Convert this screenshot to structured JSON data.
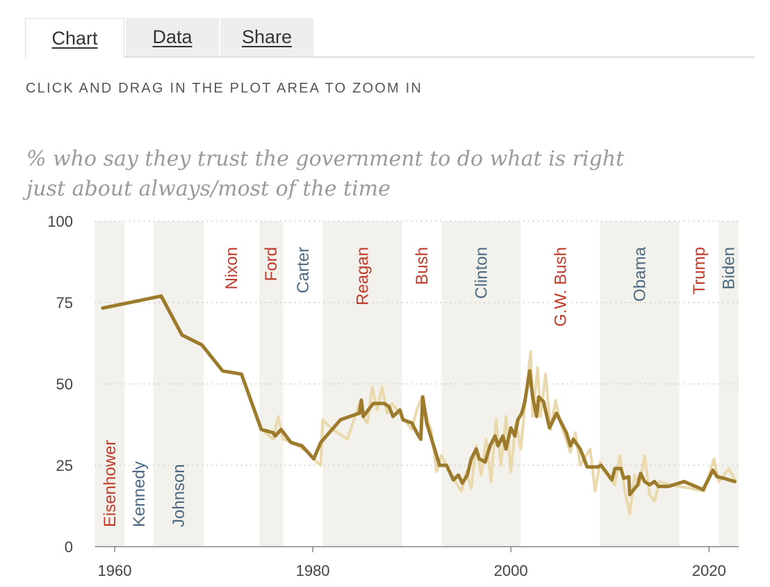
{
  "tabs": [
    "Chart",
    "Data",
    "Share"
  ],
  "instruction": "CLICK AND DRAG IN THE PLOT AREA TO ZOOM IN",
  "chart_data": {
    "type": "line",
    "title": "% who say they trust the government to do what is right just about always/most of the time",
    "xlim": [
      1958,
      2023
    ],
    "xticks": [
      1960,
      1980,
      2000,
      2020
    ],
    "ylim": [
      0,
      100
    ],
    "yticks": [
      0,
      25,
      50,
      75,
      100
    ],
    "grid": true,
    "band_color": "#f3f1ec",
    "presidents": [
      {
        "name": "Eisenhower",
        "start": 1958,
        "end": 1961,
        "color": "#bf3b2c"
      },
      {
        "name": "Kennedy",
        "start": 1961,
        "end": 1963.9,
        "color": "#4e6a82"
      },
      {
        "name": "Johnson",
        "start": 1963.9,
        "end": 1969,
        "color": "#4e6a82"
      },
      {
        "name": "Nixon",
        "start": 1969,
        "end": 1974.6,
        "color": "#bf3b2c"
      },
      {
        "name": "Ford",
        "start": 1974.6,
        "end": 1977,
        "color": "#bf3b2c"
      },
      {
        "name": "Carter",
        "start": 1977,
        "end": 1981,
        "color": "#4e6a82"
      },
      {
        "name": "Reagan",
        "start": 1981,
        "end": 1989,
        "color": "#bf3b2c"
      },
      {
        "name": "Bush",
        "start": 1989,
        "end": 1993,
        "color": "#bf3b2c"
      },
      {
        "name": "Clinton",
        "start": 1993,
        "end": 2001,
        "color": "#4e6a82"
      },
      {
        "name": "G.W. Bush",
        "start": 2001,
        "end": 2009,
        "color": "#bf3b2c"
      },
      {
        "name": "Obama",
        "start": 2009,
        "end": 2017,
        "color": "#4e6a82"
      },
      {
        "name": "Trump",
        "start": 2017,
        "end": 2021,
        "color": "#bf3b2c"
      },
      {
        "name": "Biden",
        "start": 2021,
        "end": 2023,
        "color": "#4e6a82"
      }
    ],
    "series": [
      {
        "color": "#ead9ad",
        "width": 4,
        "x": [
          1972.8,
          1974.8,
          1976,
          1976.5,
          1977,
          1978,
          1979.5,
          1980.4,
          1980.8,
          1981,
          1982,
          1983.5,
          1984.7,
          1985,
          1985.5,
          1986,
          1986.5,
          1987,
          1987.5,
          1988,
          1989,
          1990,
          1990.5,
          1991,
          1991.5,
          1992,
          1992.5,
          1993,
          1994,
          1995,
          1995.5,
          1996,
          1996.5,
          1997,
          1997.5,
          1998,
          1998.5,
          1999,
          1999.5,
          2000,
          2000.5,
          2001,
          2001.5,
          2002,
          2002.2,
          2002.7,
          2003,
          2003.5,
          2004,
          2004.5,
          2005,
          2006,
          2006.5,
          2007,
          2008,
          2008.5,
          2009,
          2010,
          2010.5,
          2011,
          2011.5,
          2012,
          2012.5,
          2013,
          2013.5,
          2014,
          2014.5,
          2015,
          2016,
          2018,
          2019.5,
          2020.5,
          2021,
          2022,
          2022.7
        ],
        "values": [
          53,
          36,
          33,
          40,
          33,
          32,
          29,
          26,
          25,
          39,
          36,
          33,
          44,
          40,
          38,
          49,
          42,
          49,
          41,
          44,
          40,
          36,
          42,
          46,
          40,
          35,
          23,
          28,
          22,
          17,
          23,
          18,
          31,
          22,
          33,
          20,
          39,
          25,
          40,
          23,
          38,
          30,
          46,
          60,
          40,
          55,
          40,
          53,
          36,
          45,
          38,
          29,
          35,
          25,
          30,
          17,
          26,
          21,
          19,
          28,
          17,
          10,
          22,
          19,
          28,
          16,
          14,
          20,
          19,
          18,
          17,
          27,
          20,
          24,
          20
        ]
      },
      {
        "color": "#9c7b2d",
        "width": 5,
        "x": [
          1958.8,
          1964.7,
          1966.8,
          1968.8,
          1970.9,
          1972.8,
          1974.8,
          1976,
          1976.2,
          1976.8,
          1977.8,
          1978.9,
          1980.1,
          1980.8,
          1982.8,
          1984.7,
          1984.9,
          1985.1,
          1986.1,
          1987.2,
          1987.7,
          1988.1,
          1988.8,
          1989.1,
          1990,
          1990.5,
          1990.9,
          1991.1,
          1991.5,
          1992.8,
          1993.5,
          1994.2,
          1994.7,
          1995.1,
          1995.6,
          1996,
          1996.5,
          1996.8,
          1997.4,
          1997.9,
          1998.4,
          1998.7,
          1999.2,
          1999.5,
          2000,
          2000.4,
          2000.7,
          2001.1,
          2001.4,
          2001.9,
          2002.2,
          2002.6,
          2002.8,
          2003.3,
          2003.9,
          2004.6,
          2005.6,
          2006,
          2006.3,
          2007,
          2007.7,
          2008.8,
          2009.1,
          2010.2,
          2010.5,
          2011.1,
          2011.4,
          2011.9,
          2012,
          2012.4,
          2012.8,
          2013.1,
          2013.5,
          2014,
          2014.5,
          2014.9,
          2015.9,
          2017.5,
          2019.4,
          2020.4,
          2020.8,
          2021.5,
          2022.6
        ],
        "values": [
          73.3,
          77,
          65,
          62,
          54,
          53,
          36,
          35,
          34,
          36,
          32,
          31,
          27,
          32,
          39,
          41,
          45,
          40,
          44,
          44,
          43,
          40,
          42,
          39,
          38,
          35,
          33,
          46,
          38,
          25,
          25,
          20.5,
          22,
          19.5,
          22,
          27,
          30,
          27,
          26,
          31,
          34,
          31,
          34,
          30,
          36.5,
          34,
          39,
          41,
          44.5,
          54,
          46,
          40,
          46,
          44.5,
          36.5,
          41,
          35,
          31,
          33,
          30,
          24.5,
          24.5,
          25,
          20.5,
          24,
          24,
          21,
          21.5,
          16,
          17.5,
          19,
          22.5,
          20,
          19,
          20,
          18.5,
          18.5,
          20,
          17.5,
          23.5,
          21.5,
          21,
          20
        ]
      }
    ]
  }
}
